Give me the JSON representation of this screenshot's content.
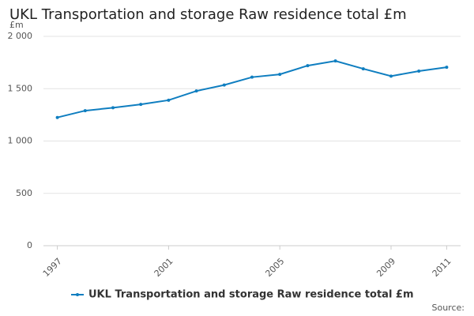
{
  "chart_data": {
    "type": "line",
    "title": "UKL Transportation and storage Raw residence total £m",
    "ylabel": "£m",
    "source": "Source:",
    "x": [
      1997,
      1998,
      1999,
      2000,
      2001,
      2002,
      2003,
      2004,
      2005,
      2006,
      2007,
      2008,
      2009,
      2010,
      2011
    ],
    "series": [
      {
        "name": "UKL Transportation and storage Raw residence total £m",
        "color": "#0f7ec0",
        "values": [
          1225,
          1290,
          1318,
          1350,
          1390,
          1478,
          1535,
          1610,
          1637,
          1720,
          1765,
          1690,
          1620,
          1668,
          1705
        ]
      }
    ],
    "xlim": [
      1996.5,
      2011.5
    ],
    "xticks": [
      1997,
      2001,
      2005,
      2009,
      2011
    ],
    "ylim": [
      0,
      2000
    ],
    "yticks": [
      0,
      500,
      {
        "value": 1000,
        "label": "1 000"
      },
      {
        "value": 1500,
        "label": "1 500"
      },
      {
        "value": 2000,
        "label": "2 000"
      }
    ],
    "grid": true,
    "legend": "bottom"
  }
}
